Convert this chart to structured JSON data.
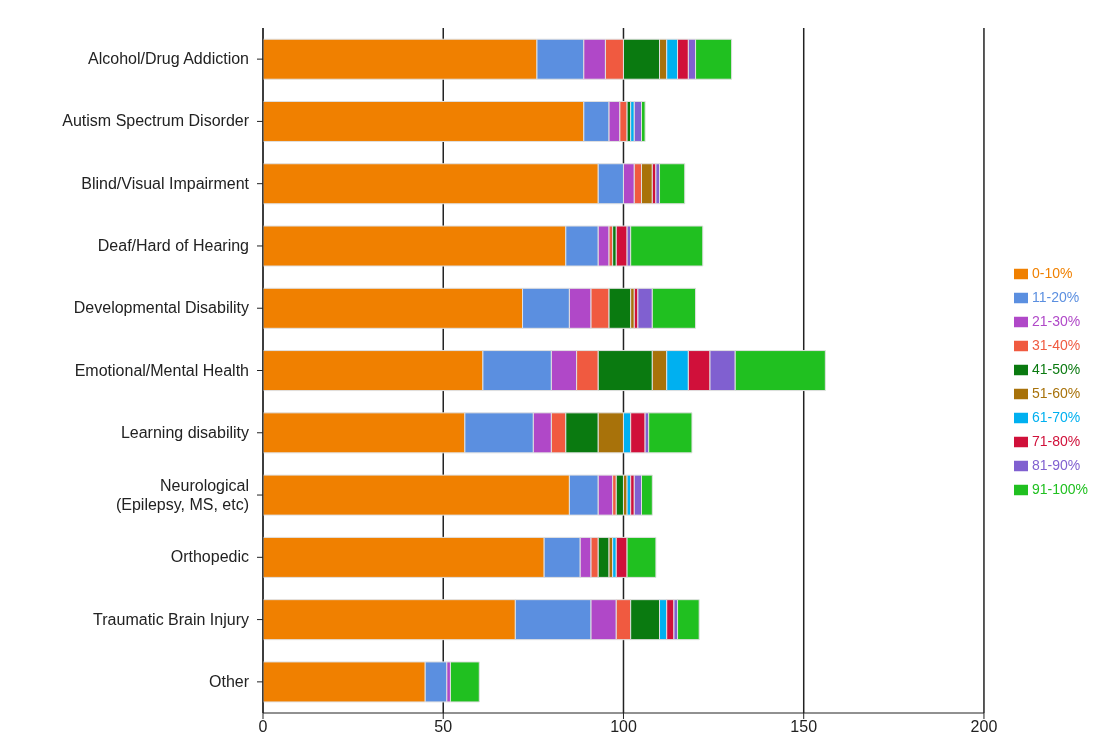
{
  "chart_data": {
    "type": "bar",
    "orientation": "horizontal",
    "stacked": true,
    "categories": [
      "Alcohol/Drug Addiction",
      "Autism Spectrum Disorder",
      "Blind/Visual Impairment",
      "Deaf/Hard of Hearing",
      "Developmental Disability",
      "Emotional/Mental Health",
      "Learning disability",
      "Neurological\n(Epilepsy, MS, etc)",
      "Orthopedic",
      "Traumatic Brain Injury",
      "Other"
    ],
    "series": [
      {
        "name": "0-10%",
        "color": "#f08000",
        "values": [
          76,
          89,
          93,
          84,
          72,
          61,
          56,
          85,
          78,
          70,
          45
        ]
      },
      {
        "name": "11-20%",
        "color": "#5b8fe0",
        "values": [
          13,
          7,
          7,
          9,
          13,
          19,
          19,
          8,
          10,
          21,
          6
        ]
      },
      {
        "name": "21-30%",
        "color": "#b048c8",
        "values": [
          6,
          3,
          3,
          3,
          6,
          7,
          5,
          4,
          3,
          7,
          1
        ]
      },
      {
        "name": "31-40%",
        "color": "#f05a40",
        "values": [
          5,
          2,
          2,
          1,
          5,
          6,
          4,
          1,
          2,
          4,
          0
        ]
      },
      {
        "name": "41-50%",
        "color": "#0a7a10",
        "values": [
          10,
          1,
          0,
          1,
          6,
          15,
          9,
          2,
          3,
          8,
          0
        ]
      },
      {
        "name": "51-60%",
        "color": "#a8720a",
        "values": [
          2,
          0,
          3,
          0,
          1,
          4,
          7,
          1,
          1,
          0,
          0
        ]
      },
      {
        "name": "61-70%",
        "color": "#00b0f0",
        "values": [
          3,
          1,
          0,
          0,
          0,
          6,
          2,
          1,
          1,
          2,
          0
        ]
      },
      {
        "name": "71-80%",
        "color": "#d0103a",
        "values": [
          3,
          0,
          1,
          3,
          1,
          6,
          4,
          1,
          3,
          2,
          0
        ]
      },
      {
        "name": "81-90%",
        "color": "#8060d0",
        "values": [
          2,
          2,
          1,
          1,
          4,
          7,
          1,
          2,
          0,
          1,
          0
        ]
      },
      {
        "name": "91-100%",
        "color": "#20c020",
        "values": [
          10,
          1,
          7,
          20,
          12,
          25,
          12,
          3,
          8,
          6,
          8
        ]
      }
    ],
    "xlim": [
      0,
      200
    ],
    "xticks": [
      0,
      50,
      100,
      150,
      200
    ],
    "grid": "x",
    "legend": "right"
  }
}
